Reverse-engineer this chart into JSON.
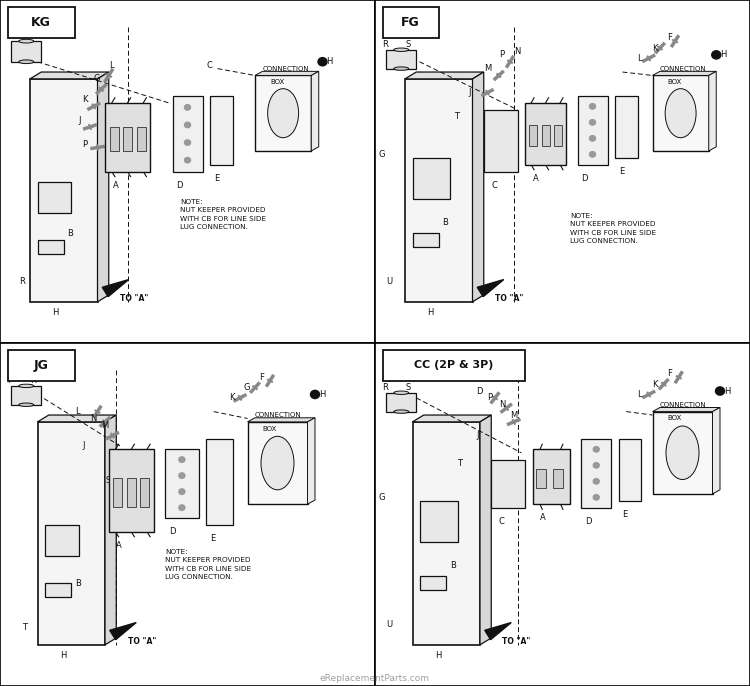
{
  "bg_color": "#ffffff",
  "lc": "#111111",
  "panels": [
    "KG",
    "FG",
    "JG",
    "CC (2P & 3P)"
  ],
  "watermark": "eReplacementParts.com",
  "note": "NOTE:\nNUT KEEPER PROVIDED\nWITH CB FOR LINE SIDE\nLUG CONNECTION."
}
